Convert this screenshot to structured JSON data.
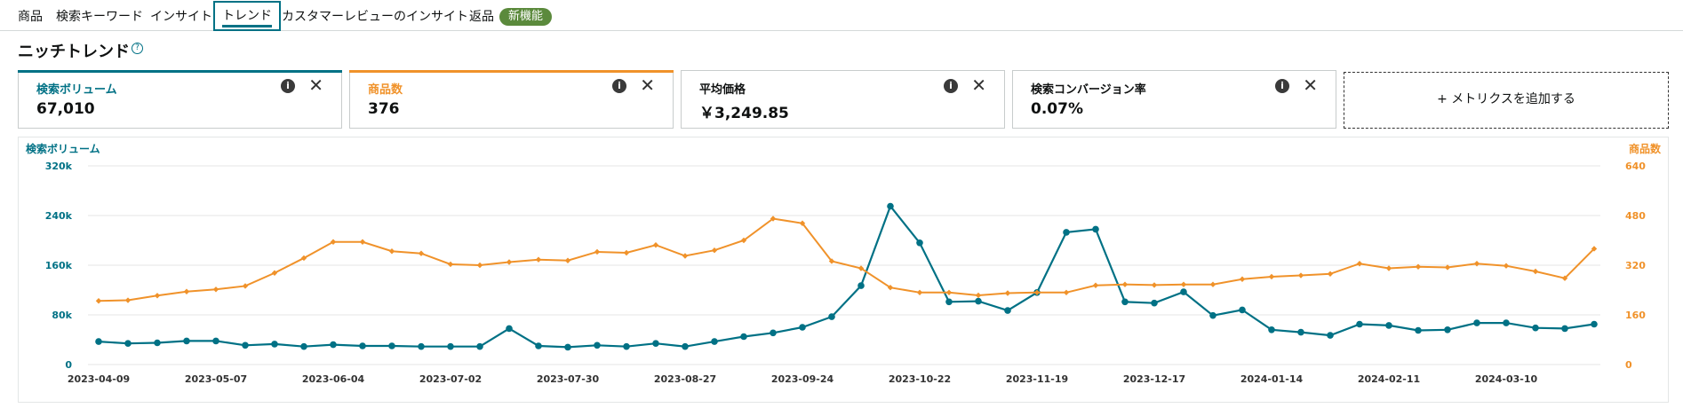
{
  "tabs": [
    {
      "label": "商品",
      "left": 0
    },
    {
      "label": "検索キーワード"
    },
    {
      "label": "インサイト"
    },
    {
      "label": "トレンド",
      "active": true
    },
    {
      "label": "カスタマーレビューのインサイト"
    },
    {
      "label": "返品"
    }
  ],
  "badge": {
    "label": "新機能"
  },
  "page": {
    "title": "ニッチトレンド",
    "help_icon": "?"
  },
  "cards": [
    {
      "name": "検索ボリューム",
      "value": "67,010",
      "color": "#007185"
    },
    {
      "name": "商品数",
      "value": "376",
      "color": "#f0922a"
    },
    {
      "name": "平均価格",
      "value": "￥3,249.85",
      "color": ""
    },
    {
      "name": "検索コンバージョン率",
      "value": "0.07%",
      "color": ""
    }
  ],
  "card_icons": {
    "info": "i",
    "close": "✕"
  },
  "add_metric": {
    "label": "+ メトリクスを追加する"
  },
  "chart_data": {
    "type": "line",
    "y_left_label": "検索ボリューム",
    "y_right_label": "商品数",
    "y_left_ticks": [
      "0",
      "80k",
      "160k",
      "240k",
      "320k"
    ],
    "y_right_ticks": [
      "0",
      "160",
      "320",
      "480",
      "640"
    ],
    "y_left_range": [
      0,
      320000
    ],
    "y_right_range": [
      0,
      640
    ],
    "x_tick_labels": [
      "2023-04-09",
      "2023-05-07",
      "2023-06-04",
      "2023-07-02",
      "2023-07-30",
      "2023-08-27",
      "2023-09-24",
      "2023-10-22",
      "2023-11-19",
      "2023-12-17",
      "2024-01-14",
      "2024-02-11",
      "2024-03-10"
    ],
    "grid": true,
    "series": [
      {
        "name": "検索ボリューム",
        "axis": "left",
        "color": "#007185",
        "values": [
          37000,
          34000,
          35000,
          38000,
          38000,
          31000,
          33000,
          29000,
          32000,
          30000,
          30000,
          29000,
          29000,
          29000,
          58000,
          30000,
          28000,
          31000,
          29000,
          34000,
          29000,
          37000,
          45000,
          51000,
          60000,
          77000,
          127000,
          255000,
          196000,
          101000,
          102000,
          87000,
          116000,
          213000,
          218000,
          101000,
          99000,
          117000,
          79000,
          88000,
          56000,
          52000,
          47000,
          65000,
          63000,
          55000,
          56000,
          67000,
          67000,
          59000,
          58000,
          65000
        ]
      },
      {
        "name": "商品数",
        "axis": "right",
        "color": "#f0922a",
        "values": [
          205,
          207,
          222,
          235,
          242,
          253,
          295,
          343,
          395,
          395,
          365,
          358,
          323,
          320,
          330,
          338,
          335,
          363,
          360,
          385,
          350,
          368,
          400,
          470,
          455,
          333,
          310,
          248,
          232,
          232,
          223,
          230,
          232,
          232,
          255,
          258,
          256,
          258,
          258,
          275,
          283,
          287,
          292,
          325,
          310,
          315,
          313,
          325,
          318,
          300,
          278,
          373
        ]
      }
    ]
  }
}
